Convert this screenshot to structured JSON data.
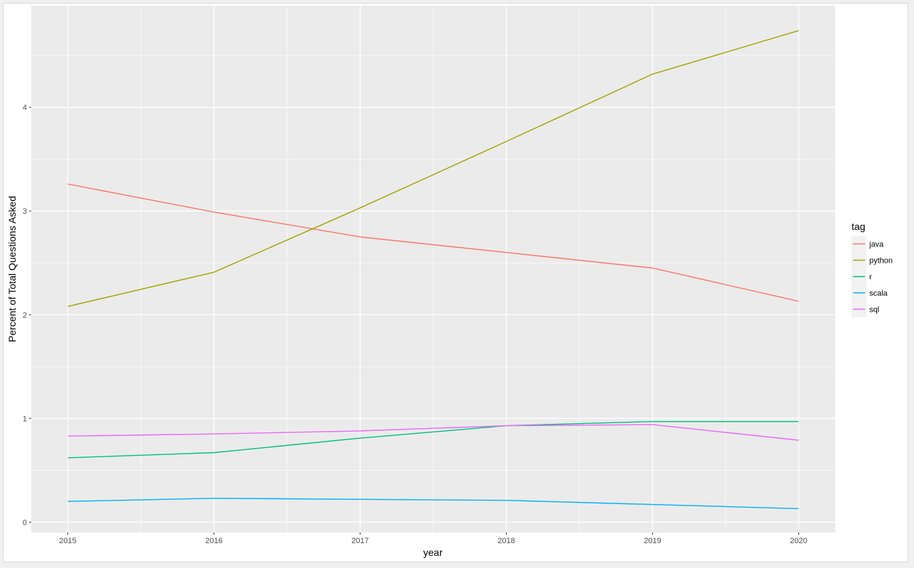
{
  "chart_data": {
    "type": "line",
    "title": "",
    "xlabel": "year",
    "ylabel": "Percent of Total Questions Asked",
    "x": [
      2015,
      2016,
      2017,
      2018,
      2019,
      2020
    ],
    "x_tick_labels": [
      "2015",
      "2016",
      "2017",
      "2018",
      "2019",
      "2020"
    ],
    "y_ticks": [
      0,
      1,
      2,
      3,
      4
    ],
    "y_tick_labels": [
      "0",
      "1",
      "2",
      "3",
      "4"
    ],
    "xlim": [
      2014.75,
      2020.25
    ],
    "ylim": [
      -0.1,
      4.98
    ],
    "grid": true,
    "legend_title": "tag",
    "legend_position": "right",
    "series": [
      {
        "name": "java",
        "color": "#F8766D",
        "values": [
          3.26,
          2.99,
          2.75,
          2.6,
          2.45,
          2.13
        ]
      },
      {
        "name": "python",
        "color": "#A3A500",
        "values": [
          2.08,
          2.41,
          3.03,
          3.67,
          4.32,
          4.74
        ]
      },
      {
        "name": "r",
        "color": "#00BF7D",
        "values": [
          0.62,
          0.67,
          0.81,
          0.93,
          0.97,
          0.97
        ]
      },
      {
        "name": "scala",
        "color": "#00B0F6",
        "values": [
          0.2,
          0.23,
          0.22,
          0.21,
          0.17,
          0.13
        ]
      },
      {
        "name": "sql",
        "color": "#E76BF3",
        "values": [
          0.83,
          0.85,
          0.88,
          0.93,
          0.94,
          0.79
        ]
      }
    ]
  },
  "colors": {
    "panel_background": "#EBEBEB",
    "grid_major": "#FFFFFF",
    "legend_key_background": "#F2F2F2"
  }
}
